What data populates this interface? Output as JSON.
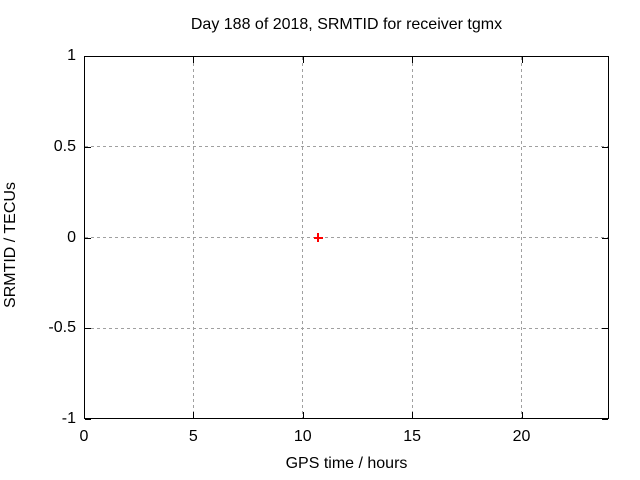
{
  "chart_data": {
    "type": "scatter",
    "title": "Day 188 of 2018, SRMTID for receiver tgmx",
    "xlabel": "GPS time / hours",
    "ylabel": "SRMTID / TECUs",
    "xlim": [
      0,
      24
    ],
    "ylim": [
      -1,
      1
    ],
    "xticks": [
      0,
      5,
      10,
      15,
      20
    ],
    "xtick_labels": [
      "0",
      "5",
      "10",
      "15",
      "20"
    ],
    "yticks": [
      1,
      0.5,
      0,
      -0.5,
      -1
    ],
    "ytick_labels": [
      "1",
      "0.5",
      "0",
      "-0.5",
      "-1"
    ],
    "grid": true,
    "legend": "none",
    "series": [
      {
        "marker": "plus",
        "color": "#ff0000",
        "points": [
          {
            "x": 10.7,
            "y": 0.0
          }
        ]
      }
    ]
  },
  "colors": {
    "background": "#ffffff",
    "axis": "#000000",
    "grid": "#a0a0a0",
    "text": "#000000"
  }
}
